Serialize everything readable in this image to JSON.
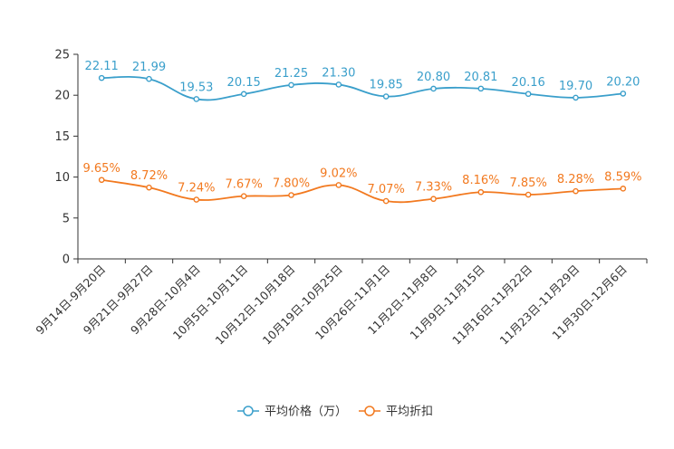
{
  "chart_data": {
    "type": "line",
    "title": "",
    "xlabel": "",
    "ylabel": "",
    "ylim": [
      0,
      25
    ],
    "yticks": [
      0,
      5,
      10,
      15,
      20,
      25
    ],
    "grid": false,
    "legend_position": "bottom",
    "categories": [
      "9月14日-9月20日",
      "9月21日-9月27日",
      "9月28日-10月4日",
      "10月5日-10月11日",
      "10月12日-10月18日",
      "10月19日-10月25日",
      "10月26日-11月1日",
      "11月2日-11月8日",
      "11月9日-11月15日",
      "11月16日-11月22日",
      "11月23日-11月29日",
      "11月30日-12月6日"
    ],
    "series": [
      {
        "name": "平均价格（万）",
        "color": "#3a9fcb",
        "values": [
          22.11,
          21.99,
          19.53,
          20.15,
          21.25,
          21.3,
          19.85,
          20.8,
          20.81,
          20.16,
          19.7,
          20.2
        ],
        "labels": [
          "22.11",
          "21.99",
          "19.53",
          "20.15",
          "21.25",
          "21.30",
          "19.85",
          "20.80",
          "20.81",
          "20.16",
          "19.70",
          "20.20"
        ]
      },
      {
        "name": "平均折扣",
        "color": "#f2791f",
        "values": [
          9.65,
          8.72,
          7.24,
          7.67,
          7.8,
          9.02,
          7.07,
          7.33,
          8.16,
          7.85,
          8.28,
          8.59
        ],
        "labels": [
          "9.65%",
          "8.72%",
          "7.24%",
          "7.67%",
          "7.80%",
          "9.02%",
          "7.07%",
          "7.33%",
          "8.16%",
          "7.85%",
          "8.28%",
          "8.59%"
        ]
      }
    ]
  }
}
